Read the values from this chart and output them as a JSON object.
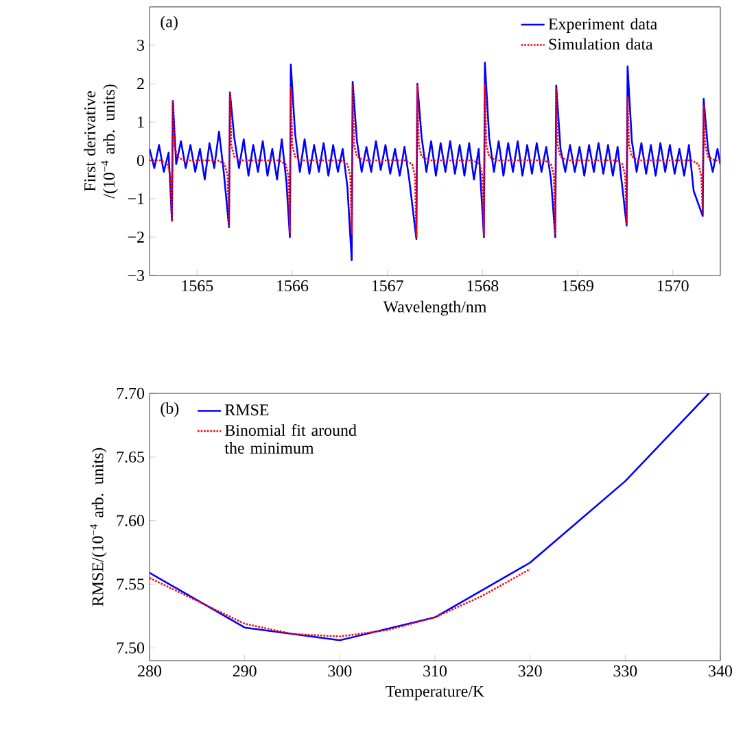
{
  "chart_data": [
    {
      "type": "line",
      "xlabel": "Wavelength/nm",
      "ylabel": "First derivative /(10$^{−4}$ arb. units)",
      "annotations": [
        "(a)"
      ],
      "legend": "top right",
      "xlim": [
        1564.5,
        1570.5
      ],
      "ylim": [
        -3,
        4
      ],
      "xticks": [
        1565,
        1566,
        1567,
        1568,
        1569,
        1570
      ],
      "yticks": [
        {
          "value": -3,
          "label": "−3"
        },
        {
          "value": -2,
          "label": "−2"
        },
        {
          "value": -1,
          "label": "−1"
        },
        0,
        1,
        2,
        3
      ],
      "series": [
        {
          "name": "Experiment data",
          "color": "#0000ff",
          "line_style": "solid",
          "x": [
            1564.5,
            1564.55,
            1564.6,
            1564.65,
            1564.7,
            1564.735,
            1564.745,
            1564.78,
            1564.83,
            1564.88,
            1564.93,
            1564.98,
            1565.03,
            1565.08,
            1565.13,
            1565.18,
            1565.23,
            1565.28,
            1565.335,
            1565.345,
            1565.39,
            1565.44,
            1565.49,
            1565.54,
            1565.59,
            1565.64,
            1565.69,
            1565.74,
            1565.79,
            1565.84,
            1565.89,
            1565.94,
            1565.975,
            1565.985,
            1566.03,
            1566.08,
            1566.13,
            1566.18,
            1566.23,
            1566.28,
            1566.33,
            1566.38,
            1566.43,
            1566.48,
            1566.53,
            1566.58,
            1566.625,
            1566.635,
            1566.68,
            1566.73,
            1566.78,
            1566.83,
            1566.88,
            1566.93,
            1566.98,
            1567.03,
            1567.08,
            1567.13,
            1567.18,
            1567.23,
            1567.305,
            1567.315,
            1567.36,
            1567.41,
            1567.46,
            1567.51,
            1567.56,
            1567.61,
            1567.66,
            1567.71,
            1567.76,
            1567.81,
            1567.86,
            1567.91,
            1567.96,
            1568.015,
            1568.025,
            1568.07,
            1568.12,
            1568.17,
            1568.22,
            1568.27,
            1568.32,
            1568.37,
            1568.42,
            1568.47,
            1568.52,
            1568.57,
            1568.62,
            1568.67,
            1568.72,
            1568.765,
            1568.775,
            1568.82,
            1568.87,
            1568.92,
            1568.97,
            1569.02,
            1569.07,
            1569.12,
            1569.17,
            1569.22,
            1569.27,
            1569.32,
            1569.37,
            1569.42,
            1569.47,
            1569.515,
            1569.525,
            1569.57,
            1569.62,
            1569.67,
            1569.72,
            1569.77,
            1569.82,
            1569.87,
            1569.92,
            1569.97,
            1570.02,
            1570.07,
            1570.12,
            1570.17,
            1570.22,
            1570.315,
            1570.325,
            1570.37,
            1570.42,
            1570.47,
            1570.5
          ],
          "values": [
            0.3,
            -0.2,
            0.4,
            -0.3,
            0.2,
            -1.55,
            1.55,
            -0.1,
            0.5,
            -0.2,
            0.4,
            -0.3,
            0.3,
            -0.5,
            0.45,
            -0.2,
            0.75,
            -0.3,
            -1.74,
            1.77,
            0.6,
            -0.2,
            0.55,
            -0.4,
            0.4,
            -0.3,
            0.5,
            -0.4,
            0.3,
            -0.5,
            0.55,
            -0.6,
            -2.0,
            2.5,
            0.7,
            -0.3,
            0.55,
            -0.35,
            0.4,
            -0.3,
            0.45,
            -0.4,
            0.4,
            -0.3,
            0.3,
            -0.7,
            -2.6,
            2.05,
            0.5,
            -0.3,
            0.35,
            -0.3,
            0.5,
            -0.25,
            0.4,
            -0.35,
            0.3,
            -0.4,
            0.35,
            -0.5,
            -2.05,
            2.0,
            0.6,
            -0.3,
            0.5,
            -0.4,
            0.45,
            -0.3,
            0.5,
            -0.35,
            0.4,
            -0.4,
            0.45,
            -0.5,
            0.3,
            -2.0,
            2.55,
            0.6,
            -0.3,
            0.5,
            -0.4,
            0.45,
            -0.3,
            0.5,
            -0.4,
            0.4,
            -0.35,
            0.45,
            -0.3,
            0.35,
            -0.5,
            -2.0,
            1.95,
            0.3,
            -0.3,
            0.4,
            -0.3,
            0.35,
            -0.4,
            0.4,
            -0.3,
            0.45,
            -0.35,
            0.4,
            -0.4,
            0.35,
            -0.7,
            -1.7,
            2.45,
            0.5,
            -0.3,
            0.45,
            -0.35,
            0.4,
            -0.4,
            0.45,
            -0.3,
            0.4,
            -0.35,
            0.3,
            -0.4,
            0.4,
            -0.8,
            -1.45,
            1.6,
            0.3,
            -0.3,
            0.3,
            -0.1
          ]
        },
        {
          "name": "Simulation data",
          "color": "#ff0000",
          "line_style": "dotted",
          "x": [
            1564.5,
            1564.62,
            1564.69,
            1564.72,
            1564.735,
            1564.745,
            1564.76,
            1564.79,
            1564.86,
            1565.22,
            1565.29,
            1565.32,
            1565.335,
            1565.345,
            1565.36,
            1565.39,
            1565.46,
            1565.86,
            1565.93,
            1565.96,
            1565.975,
            1565.985,
            1566.0,
            1566.03,
            1566.1,
            1566.51,
            1566.58,
            1566.61,
            1566.625,
            1566.635,
            1566.65,
            1566.68,
            1566.75,
            1567.19,
            1567.26,
            1567.29,
            1567.305,
            1567.315,
            1567.33,
            1567.36,
            1567.43,
            1567.9,
            1567.97,
            1568.0,
            1568.015,
            1568.025,
            1568.04,
            1568.07,
            1568.14,
            1568.65,
            1568.72,
            1568.75,
            1568.765,
            1568.775,
            1568.79,
            1568.82,
            1568.89,
            1569.4,
            1569.47,
            1569.5,
            1569.515,
            1569.525,
            1569.54,
            1569.57,
            1569.64,
            1570.2,
            1570.27,
            1570.3,
            1570.315,
            1570.325,
            1570.34,
            1570.37,
            1570.44,
            1570.5
          ],
          "values": [
            0,
            0,
            -0.1,
            -0.4,
            -1.58,
            1.57,
            0.4,
            0.1,
            0,
            0,
            -0.1,
            -0.4,
            -1.74,
            1.77,
            0.4,
            0.1,
            0,
            0,
            -0.1,
            -0.4,
            -1.88,
            1.89,
            0.4,
            0.1,
            0,
            0,
            -0.1,
            -0.4,
            -1.9,
            1.93,
            0.4,
            0.1,
            0,
            0,
            -0.1,
            -0.4,
            -2.02,
            1.95,
            0.4,
            0.1,
            0,
            0,
            -0.1,
            -0.4,
            -1.94,
            1.99,
            0.4,
            0.1,
            0,
            0,
            -0.1,
            -0.4,
            -1.94,
            1.87,
            0.4,
            0.1,
            0,
            0,
            -0.1,
            -0.4,
            -1.68,
            1.67,
            0.4,
            0.1,
            0,
            0,
            -0.1,
            -0.4,
            -1.4,
            1.45,
            0.4,
            0.1,
            0,
            0
          ]
        }
      ]
    },
    {
      "type": "line",
      "xlabel": "Temperature/K",
      "ylabel": "RMSE/(10$^{−4}$ arb. units)",
      "annotations": [
        "(b)"
      ],
      "legend": "top left",
      "xlim": [
        280,
        340
      ],
      "ylim": [
        7.49,
        7.7
      ],
      "xticks": [
        280,
        290,
        300,
        310,
        320,
        330,
        340
      ],
      "yticks": [
        {
          "value": 7.5,
          "label": "7.50"
        },
        {
          "value": 7.55,
          "label": "7.55"
        },
        {
          "value": 7.6,
          "label": "7.60"
        },
        {
          "value": 7.65,
          "label": "7.65"
        },
        {
          "value": 7.7,
          "label": "7.70"
        }
      ],
      "series": [
        {
          "name": "RMSE",
          "color": "#0000ff",
          "line_style": "solid",
          "x": [
            280,
            290,
            300,
            310,
            320,
            330,
            338.8
          ],
          "values": [
            7.559,
            7.516,
            7.506,
            7.524,
            7.567,
            7.631,
            7.7
          ]
        },
        {
          "name": "Binomial fit around the minimum",
          "color": "#ff0000",
          "line_style": "dotted",
          "x": [
            280,
            285,
            290,
            295,
            300,
            305,
            310,
            315,
            320
          ],
          "values": [
            7.555,
            7.537,
            7.519,
            7.511,
            7.509,
            7.514,
            7.524,
            7.541,
            7.562
          ]
        }
      ]
    }
  ]
}
